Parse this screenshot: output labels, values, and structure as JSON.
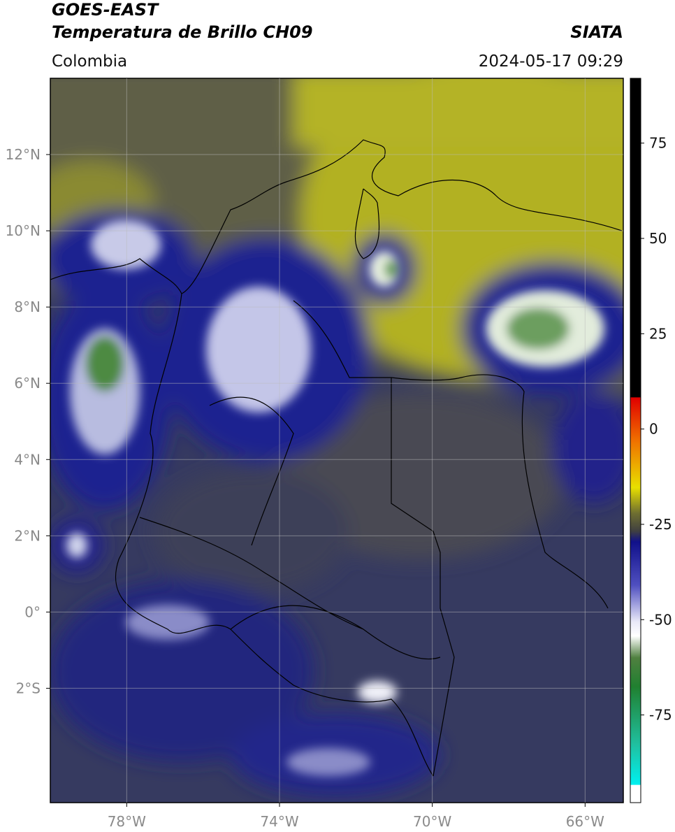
{
  "chart_data": {
    "type": "map",
    "title": "GOES-EAST",
    "subtitle": "Temperatura de Brillo CH09",
    "source": "SIATA",
    "region": "Colombia",
    "timestamp": "2024-05-17 09:29",
    "xlim": [
      -80,
      -65
    ],
    "ylim": [
      -5,
      14
    ],
    "xticks": [
      {
        "value": -78,
        "label": "78°W"
      },
      {
        "value": -74,
        "label": "74°W"
      },
      {
        "value": -70,
        "label": "70°W"
      },
      {
        "value": -66,
        "label": "66°W"
      }
    ],
    "yticks": [
      {
        "value": 12,
        "label": "12°N"
      },
      {
        "value": 10,
        "label": "10°N"
      },
      {
        "value": 8,
        "label": "8°N"
      },
      {
        "value": 6,
        "label": "6°N"
      },
      {
        "value": 4,
        "label": "4°N"
      },
      {
        "value": 2,
        "label": "2°N"
      },
      {
        "value": 0,
        "label": "0°"
      },
      {
        "value": -2,
        "label": "2°S"
      }
    ],
    "grid": true,
    "colorbar": {
      "lim": [
        -98,
        92
      ],
      "ticks": [
        75,
        50,
        25,
        0,
        -25,
        -50,
        -75
      ]
    }
  }
}
